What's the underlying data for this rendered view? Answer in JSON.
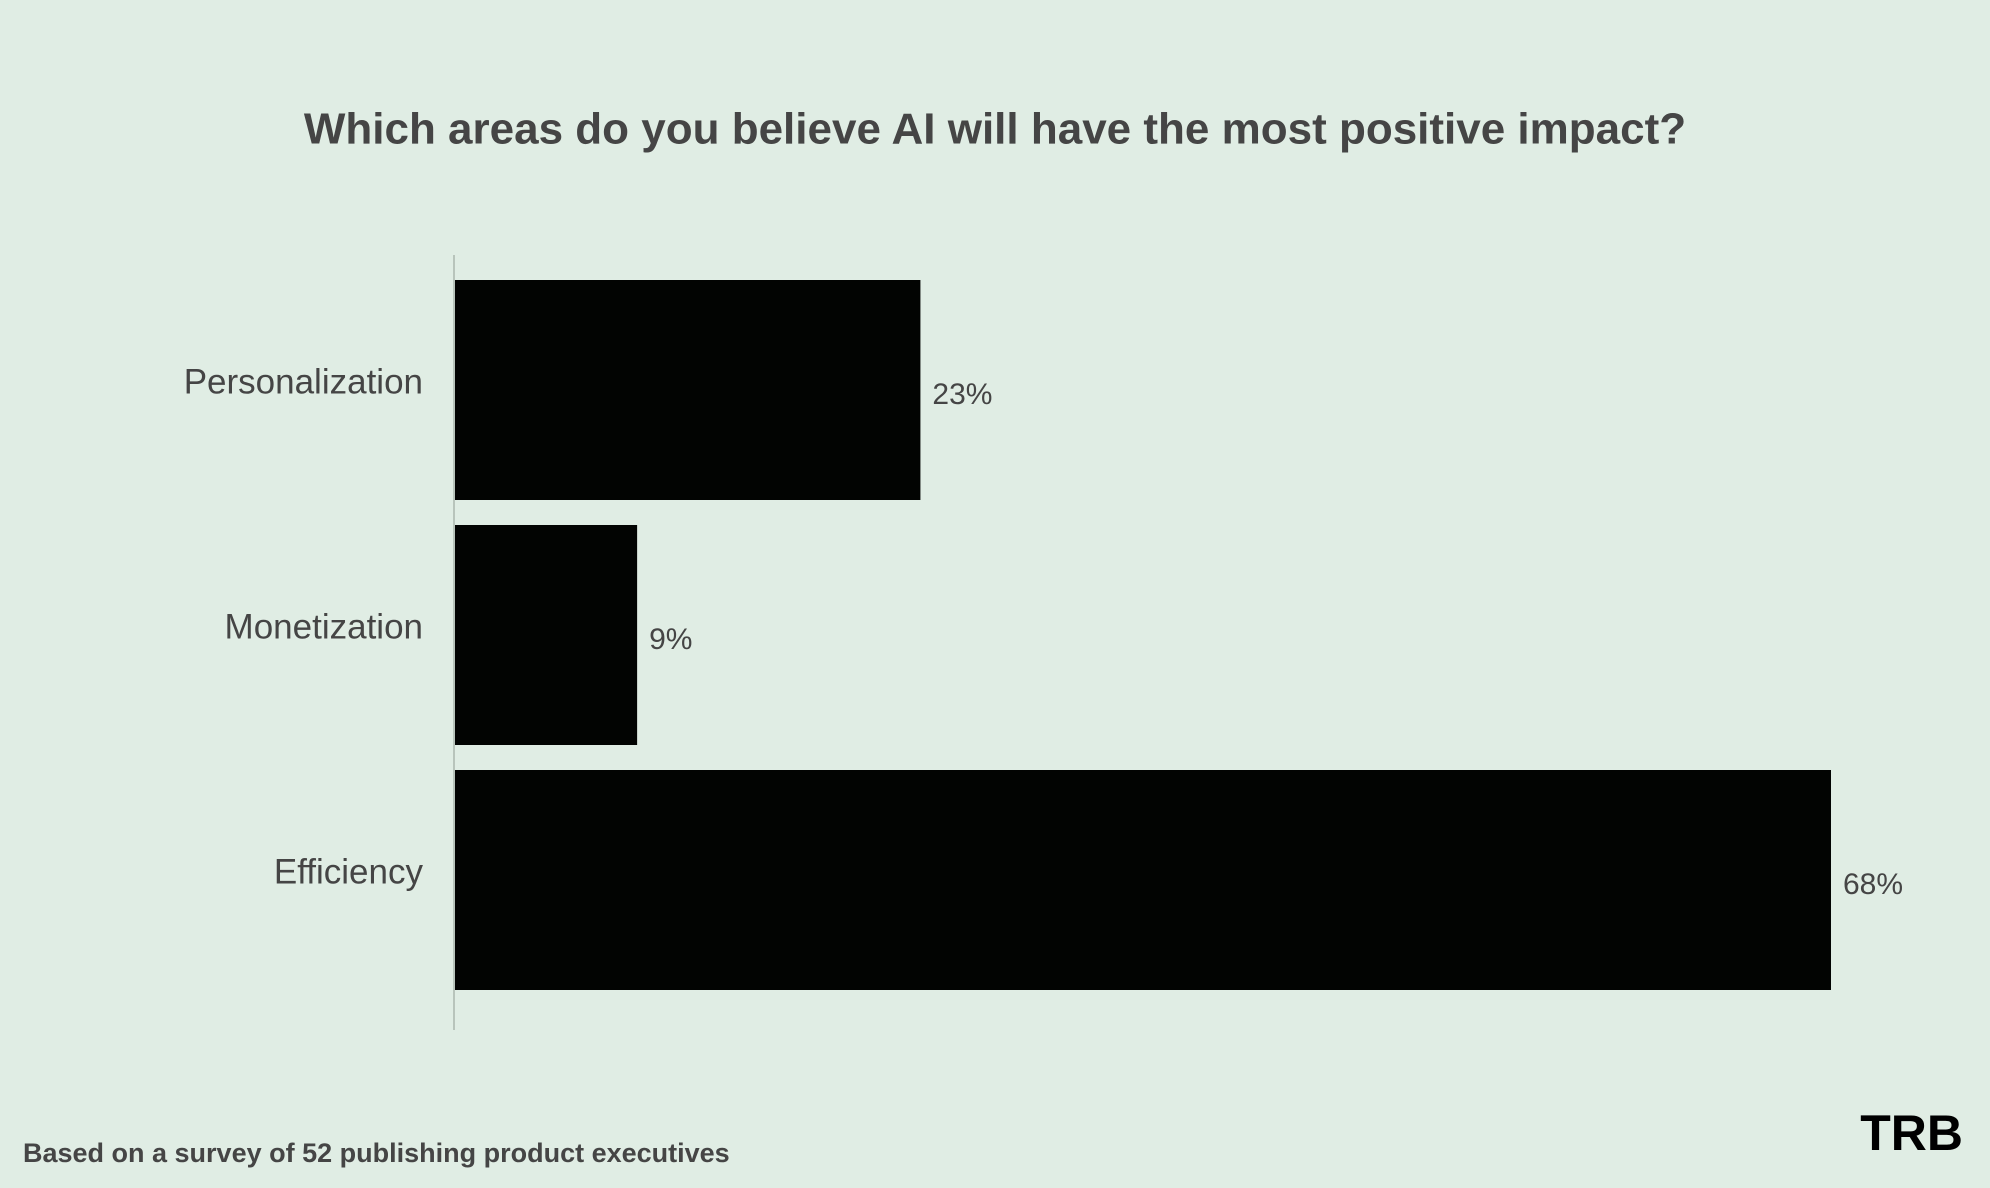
{
  "chart_data": {
    "type": "bar",
    "orientation": "horizontal",
    "title": "Which areas do you believe AI will have the most positive impact?",
    "categories": [
      "Personalization",
      "Monetization",
      "Efficiency"
    ],
    "values": [
      23,
      9,
      68
    ],
    "value_labels": [
      "23%",
      "9%",
      "68%"
    ],
    "color": "#020402",
    "footnote": "Based on a survey of 52 publishing product executives",
    "logo": "TRB"
  }
}
